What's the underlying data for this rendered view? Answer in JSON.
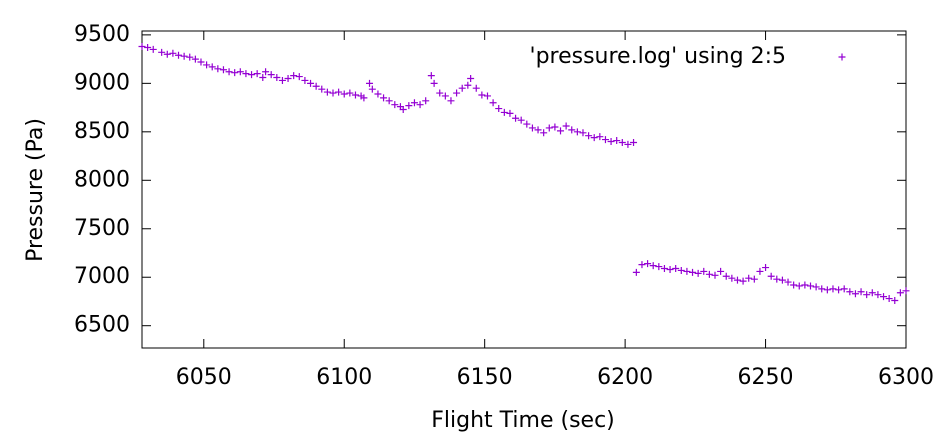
{
  "chart_data": {
    "type": "scatter",
    "x_label": "Flight Time (sec)",
    "y_label": "Pressure (Pa)",
    "xlim": [
      6028,
      6300
    ],
    "ylim": [
      6270,
      9540
    ],
    "xticks": [
      6050,
      6100,
      6150,
      6200,
      6250,
      6300
    ],
    "yticks": [
      6500,
      7000,
      7500,
      8000,
      8500,
      9000,
      9500
    ],
    "grid": false,
    "legend_position": "top-right",
    "series": [
      {
        "name": "'pressure.log' using 2:5",
        "color": "#9400d3",
        "x": [
          6028,
          6030,
          6032,
          6035,
          6037,
          6039,
          6041,
          6043,
          6045,
          6047,
          6049,
          6051,
          6053,
          6055,
          6057,
          6059,
          6061,
          6063,
          6065,
          6067,
          6069,
          6071,
          6072,
          6074,
          6076,
          6078,
          6080,
          6082,
          6084,
          6086,
          6088,
          6090,
          6092,
          6094,
          6096,
          6098,
          6100,
          6102,
          6104,
          6106,
          6107,
          6109,
          6110,
          6112,
          6114,
          6116,
          6118,
          6120,
          6121,
          6123,
          6125,
          6127,
          6129,
          6131,
          6132,
          6134,
          6136,
          6138,
          6140,
          6142,
          6144,
          6145,
          6147,
          6149,
          6151,
          6153,
          6155,
          6157,
          6159,
          6161,
          6163,
          6165,
          6167,
          6169,
          6171,
          6173,
          6175,
          6177,
          6179,
          6181,
          6183,
          6185,
          6187,
          6189,
          6191,
          6193,
          6195,
          6197,
          6199,
          6201,
          6203,
          6204,
          6206,
          6208,
          6210,
          6212,
          6214,
          6216,
          6218,
          6220,
          6222,
          6224,
          6226,
          6228,
          6230,
          6232,
          6234,
          6236,
          6238,
          6240,
          6242,
          6244,
          6246,
          6248,
          6250,
          6252,
          6254,
          6256,
          6258,
          6260,
          6262,
          6264,
          6266,
          6268,
          6270,
          6272,
          6274,
          6276,
          6278,
          6280,
          6282,
          6284,
          6286,
          6288,
          6290,
          6292,
          6294,
          6296,
          6298,
          6300
        ],
        "values": [
          9380,
          9370,
          9350,
          9320,
          9300,
          9310,
          9290,
          9280,
          9270,
          9250,
          9220,
          9190,
          9170,
          9150,
          9140,
          9120,
          9110,
          9120,
          9100,
          9090,
          9100,
          9060,
          9120,
          9090,
          9060,
          9030,
          9050,
          9080,
          9070,
          9030,
          9000,
          8970,
          8940,
          8910,
          8900,
          8910,
          8890,
          8900,
          8880,
          8870,
          8850,
          9000,
          8940,
          8890,
          8850,
          8820,
          8780,
          8760,
          8730,
          8770,
          8800,
          8780,
          8820,
          9080,
          9000,
          8900,
          8870,
          8820,
          8900,
          8950,
          8980,
          9050,
          8950,
          8880,
          8870,
          8800,
          8740,
          8700,
          8690,
          8640,
          8620,
          8580,
          8540,
          8520,
          8490,
          8540,
          8550,
          8510,
          8560,
          8520,
          8500,
          8490,
          8460,
          8440,
          8450,
          8420,
          8400,
          8410,
          8390,
          8370,
          8390,
          7050,
          7130,
          7140,
          7120,
          7110,
          7090,
          7080,
          7090,
          7070,
          7060,
          7050,
          7040,
          7060,
          7030,
          7020,
          7060,
          7010,
          6990,
          6970,
          6960,
          6990,
          6980,
          7060,
          7100,
          7010,
          6980,
          6970,
          6950,
          6920,
          6910,
          6920,
          6910,
          6900,
          6880,
          6870,
          6880,
          6870,
          6880,
          6850,
          6830,
          6850,
          6820,
          6840,
          6820,
          6800,
          6780,
          6760,
          6840,
          6860
        ]
      }
    ]
  }
}
